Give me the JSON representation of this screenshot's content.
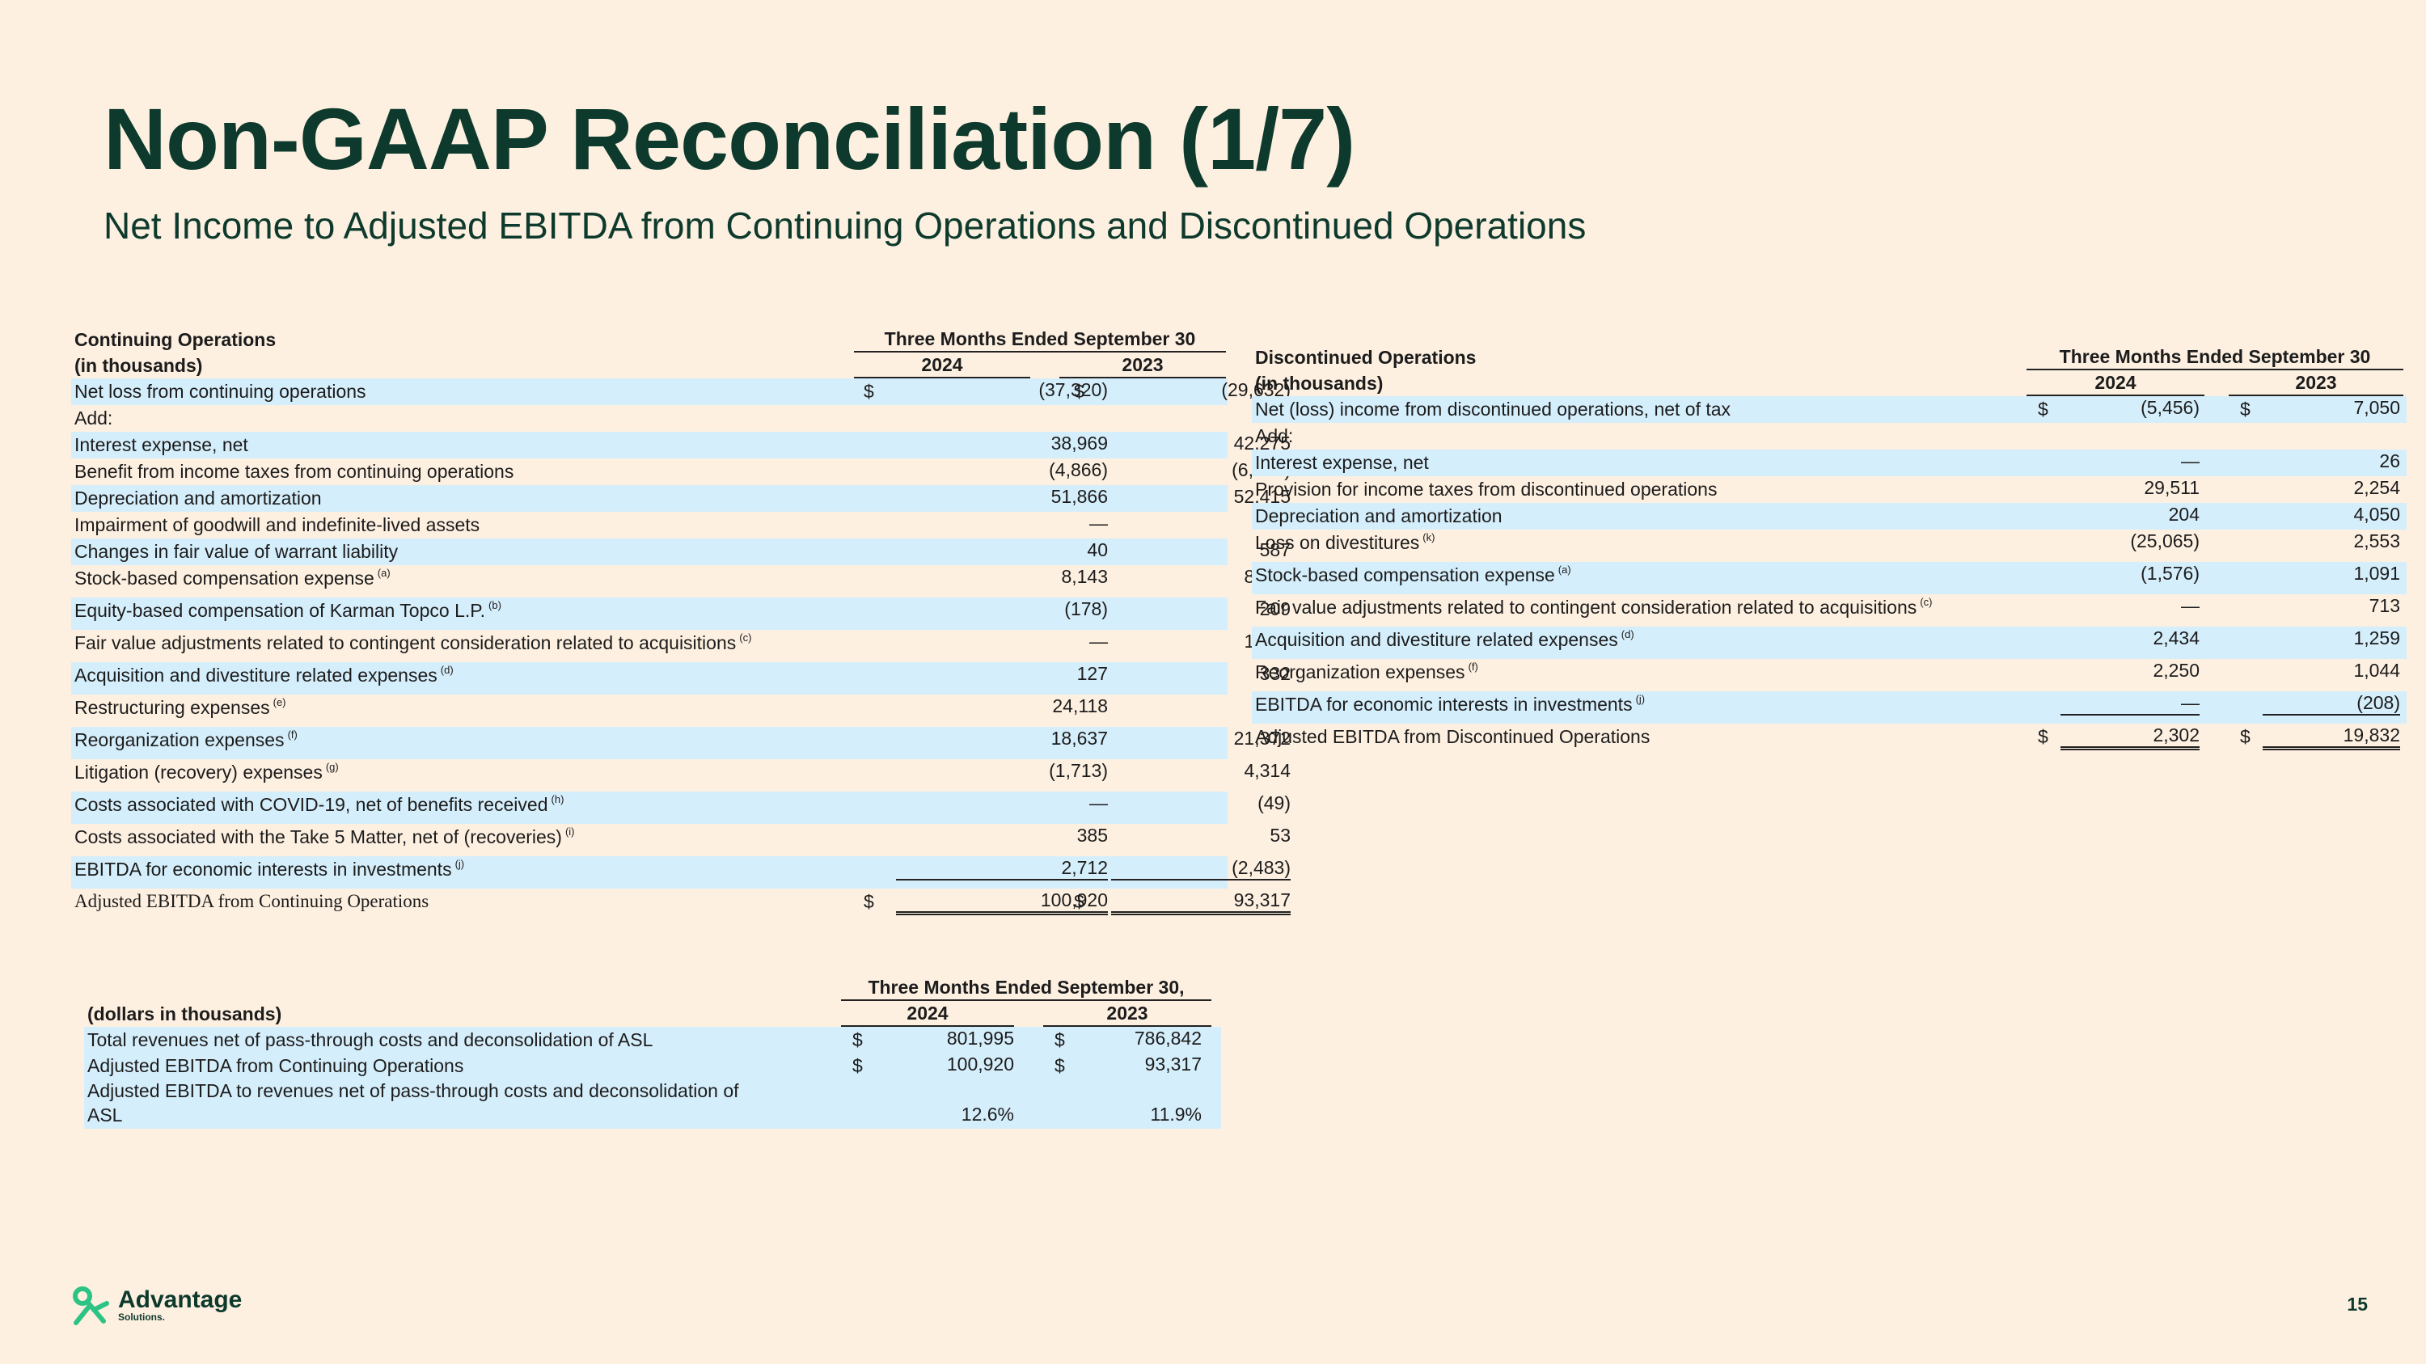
{
  "header": {
    "title": "Non-GAAP Reconciliation (1/7)",
    "subtitle": "Net Income to Adjusted EBITDA from Continuing Operations and Discontinued Operations"
  },
  "continuing": {
    "heading": "Continuing Operations",
    "units": "(in thousands)",
    "period": "Three Months Ended September 30",
    "col1": "2024",
    "col2": "2023",
    "rows": [
      {
        "label": "Net loss from continuing operations",
        "note": "",
        "d1": "$",
        "v1": "(37,320)",
        "d2": "$",
        "v2": "(29,632)"
      },
      {
        "label": "Add:",
        "note": "",
        "d1": "",
        "v1": "",
        "d2": "",
        "v2": ""
      },
      {
        "label": "Interest expense, net",
        "note": "",
        "d1": "",
        "v1": "38,969",
        "d2": "",
        "v2": "42,275"
      },
      {
        "label": "Benefit from income taxes from continuing operations",
        "note": "",
        "d1": "",
        "v1": "(4,866)",
        "d2": "",
        "v2": "(6,577)"
      },
      {
        "label": "Depreciation and amortization",
        "note": "",
        "d1": "",
        "v1": "51,866",
        "d2": "",
        "v2": "52,415"
      },
      {
        "label": "Impairment of goodwill and indefinite-lived assets",
        "note": "",
        "d1": "",
        "v1": "—",
        "d2": "",
        "v2": "—"
      },
      {
        "label": "Changes in fair value of warrant liability",
        "note": "",
        "d1": "",
        "v1": "40",
        "d2": "",
        "v2": "587"
      },
      {
        "label": "Stock-based compensation expense",
        "note": "(a)",
        "d1": "",
        "v1": "8,143",
        "d2": "",
        "v2": "8,983"
      },
      {
        "label": "Equity-based compensation of Karman Topco L.P.",
        "note": "(b)",
        "d1": "",
        "v1": "(178)",
        "d2": "",
        "v2": "209"
      },
      {
        "label": "Fair value adjustments related to contingent consideration related to acquisitions",
        "note": "(c)",
        "d1": "",
        "v1": "—",
        "d2": "",
        "v2": "1,518"
      },
      {
        "label": "Acquisition and divestiture related expenses",
        "note": "(d)",
        "d1": "",
        "v1": "127",
        "d2": "",
        "v2": "332"
      },
      {
        "label": "Restructuring expenses",
        "note": "(e)",
        "d1": "",
        "v1": "24,118",
        "d2": "",
        "v2": "—"
      },
      {
        "label": "Reorganization expenses",
        "note": "(f)",
        "d1": "",
        "v1": "18,637",
        "d2": "",
        "v2": "21,372"
      },
      {
        "label": "Litigation (recovery) expenses",
        "note": "(g)",
        "d1": "",
        "v1": "(1,713)",
        "d2": "",
        "v2": "4,314"
      },
      {
        "label": "Costs associated with COVID-19, net of benefits received",
        "note": "(h)",
        "d1": "",
        "v1": "—",
        "d2": "",
        "v2": "(49)"
      },
      {
        "label": "Costs associated with the Take 5 Matter, net of (recoveries)",
        "note": "(i)",
        "d1": "",
        "v1": "385",
        "d2": "",
        "v2": "53"
      },
      {
        "label": "EBITDA for economic interests in investments",
        "note": "(j)",
        "d1": "",
        "v1": "2,712",
        "d2": "",
        "v2": "(2,483)"
      },
      {
        "label": "Adjusted EBITDA from Continuing Operations",
        "note": "",
        "d1": "$",
        "v1": "100,920",
        "d2": "$",
        "v2": "93,317"
      }
    ]
  },
  "discontinued": {
    "heading": "Discontinued Operations",
    "units": "(in thousands)",
    "period": "Three Months Ended September 30",
    "col1": "2024",
    "col2": "2023",
    "rows": [
      {
        "label": "Net (loss) income from discontinued operations, net of tax",
        "note": "",
        "d1": "$",
        "v1": "(5,456)",
        "d2": "$",
        "v2": "7,050"
      },
      {
        "label": "Add:",
        "note": "",
        "d1": "",
        "v1": "",
        "d2": "",
        "v2": ""
      },
      {
        "label": "Interest expense, net",
        "note": "",
        "d1": "",
        "v1": "—",
        "d2": "",
        "v2": "26"
      },
      {
        "label": "Provision for income taxes from discontinued operations",
        "note": "",
        "d1": "",
        "v1": "29,511",
        "d2": "",
        "v2": "2,254"
      },
      {
        "label": "Depreciation and amortization",
        "note": "",
        "d1": "",
        "v1": "204",
        "d2": "",
        "v2": "4,050"
      },
      {
        "label": "Loss on divestitures",
        "note": "(k)",
        "d1": "",
        "v1": "(25,065)",
        "d2": "",
        "v2": "2,553"
      },
      {
        "label": "Stock-based compensation expense",
        "note": "(a)",
        "d1": "",
        "v1": "(1,576)",
        "d2": "",
        "v2": "1,091"
      },
      {
        "label": "Fair value adjustments related to contingent consideration related to acquisitions",
        "note": "(c)",
        "d1": "",
        "v1": "—",
        "d2": "",
        "v2": "713"
      },
      {
        "label": "Acquisition and divestiture related expenses",
        "note": "(d)",
        "d1": "",
        "v1": "2,434",
        "d2": "",
        "v2": "1,259"
      },
      {
        "label": "Reorganization expenses",
        "note": "(f)",
        "d1": "",
        "v1": "2,250",
        "d2": "",
        "v2": "1,044"
      },
      {
        "label": "EBITDA for economic interests in investments",
        "note": "(j)",
        "d1": "",
        "v1": "—",
        "d2": "",
        "v2": "(208)"
      },
      {
        "label": "Adjusted EBITDA from Discontinued Operations",
        "note": "",
        "d1": "$",
        "v1": "2,302",
        "d2": "$",
        "v2": "19,832"
      }
    ]
  },
  "margin": {
    "units": "(dollars in thousands)",
    "period": "Three Months Ended September 30,",
    "col1": "2024",
    "col2": "2023",
    "rows": [
      {
        "label": "Total revenues net of pass-through costs and deconsolidation of ASL",
        "d1": "$",
        "v1": "801,995",
        "d2": "$",
        "v2": "786,842"
      },
      {
        "label": "Adjusted EBITDA from Continuing Operations",
        "d1": "$",
        "v1": "100,920",
        "d2": "$",
        "v2": "93,317"
      },
      {
        "label": "Adjusted EBITDA to revenues net of pass-through costs and deconsolidation of",
        "label2": "ASL",
        "d1": "",
        "v1": "12.6%",
        "d2": "",
        "v2": "11.9%"
      }
    ]
  },
  "footer": {
    "logo_main": "Advantage",
    "logo_sub": "Solutions.",
    "page_number": "15"
  },
  "colors": {
    "title": "#0d3a2c",
    "background": "#fdf0e1",
    "row_shade": "#d5eefb",
    "logo": "#2cc384"
  }
}
